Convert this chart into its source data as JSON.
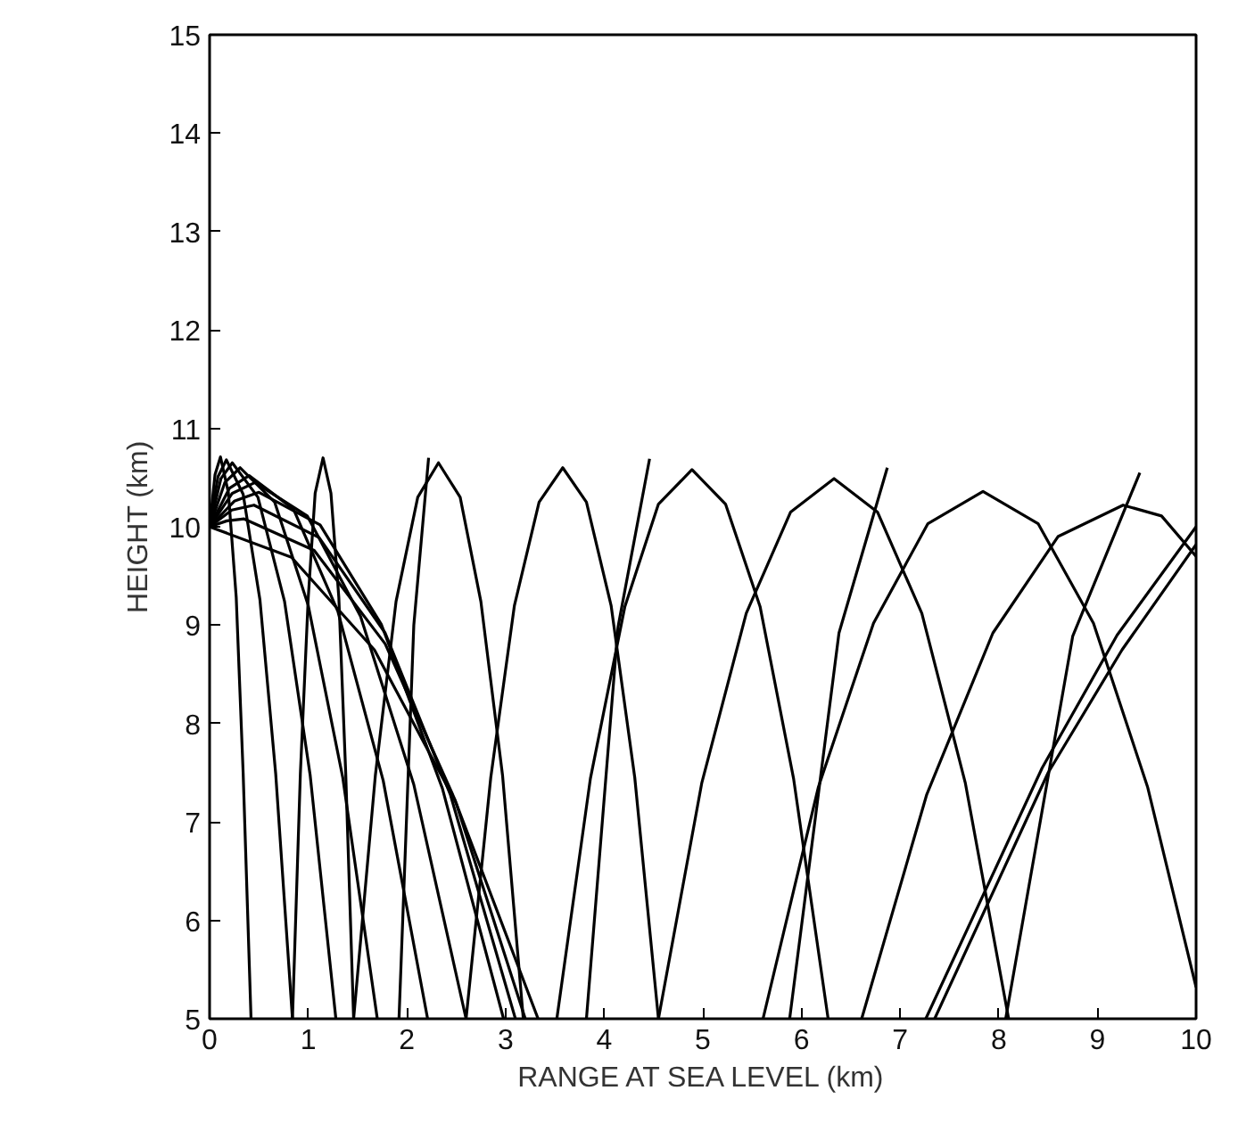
{
  "chart_data": {
    "type": "line",
    "xlabel": "RANGE AT SEA LEVEL (km)",
    "ylabel": "HEIGHT (km)",
    "xlim": [
      0,
      10
    ],
    "ylim": [
      5,
      15
    ],
    "xticks": [
      0,
      1,
      2,
      3,
      4,
      5,
      6,
      7,
      8,
      9,
      10
    ],
    "yticks": [
      5,
      6,
      7,
      8,
      9,
      10,
      11,
      12,
      13,
      14,
      15
    ],
    "series": [
      {
        "color": "#000000",
        "x": [
          0,
          0.055,
          0.11,
          0.19,
          0.27,
          0.34,
          0.42
        ],
        "values": [
          10,
          10.53,
          10.71,
          10.35,
          9.28,
          7.5,
          5
        ]
      },
      {
        "color": "#000000",
        "x": [
          0,
          0.085,
          0.17,
          0.34,
          0.51,
          0.67,
          0.84
        ],
        "values": [
          10,
          10.51,
          10.68,
          10.33,
          9.26,
          7.49,
          5
        ]
      },
      {
        "color": "#000000",
        "x": [
          0,
          0.115,
          0.23,
          0.49,
          0.76,
          1.02,
          1.28
        ],
        "values": [
          10,
          10.49,
          10.65,
          10.3,
          9.24,
          7.47,
          5
        ]
      },
      {
        "color": "#000000",
        "x": [
          0,
          0.155,
          0.31,
          0.66,
          1.0,
          1.35,
          1.7
        ],
        "values": [
          10,
          10.45,
          10.6,
          10.25,
          9.2,
          7.45,
          5
        ]
      },
      {
        "color": "#000000",
        "x": [
          0,
          0.2,
          0.4,
          0.85,
          1.3,
          1.76,
          2.21
        ],
        "values": [
          10,
          10.39,
          10.52,
          10.18,
          9.14,
          7.42,
          5
        ]
      },
      {
        "color": "#000000",
        "x": [
          0,
          0.23,
          0.46,
          0.99,
          1.53,
          2.07,
          2.6
        ],
        "values": [
          10,
          10.34,
          10.45,
          10.11,
          9.09,
          7.38,
          5
        ]
      },
      {
        "color": "#000000",
        "x": [
          0,
          0.25,
          0.5,
          1.12,
          1.74,
          2.36,
          2.98
        ],
        "values": [
          10,
          10.26,
          10.35,
          10.02,
          9.01,
          7.34,
          5
        ]
      },
      {
        "color": "#000000",
        "x": [
          0,
          0.225,
          0.45,
          1.11,
          1.78,
          2.44,
          3.1
        ],
        "values": [
          10,
          10.17,
          10.22,
          9.89,
          8.92,
          7.28,
          5
        ]
      },
      {
        "color": "#000000",
        "x": [
          0,
          0.175,
          0.35,
          1.06,
          1.78,
          2.49,
          3.2
        ],
        "values": [
          10,
          10.06,
          10.08,
          9.76,
          8.81,
          7.22,
          5
        ]
      },
      {
        "color": "#000000",
        "x": [
          0,
          0.83,
          1.67,
          2.5,
          3.33
        ],
        "values": [
          10,
          9.69,
          8.75,
          7.19,
          5
        ]
      },
      {
        "color": "#000000",
        "x": [
          0.84,
          0.92,
          1.0,
          1.07,
          1.15,
          1.23,
          1.31,
          1.38,
          1.46
        ],
        "values": [
          5,
          7.49,
          9.28,
          10.34,
          10.7,
          10.34,
          9.28,
          7.49,
          5
        ]
      },
      {
        "color": "#000000",
        "x": [
          1.46,
          1.68,
          1.89,
          2.11,
          2.32,
          2.54,
          2.75,
          2.97,
          3.18
        ],
        "values": [
          5,
          7.47,
          9.24,
          10.3,
          10.65,
          10.3,
          9.24,
          7.47,
          5
        ]
      },
      {
        "color": "#000000",
        "x": [
          2.6,
          2.85,
          3.09,
          3.34,
          3.58,
          3.82,
          4.07,
          4.31,
          4.55
        ],
        "values": [
          5,
          7.45,
          9.2,
          10.25,
          10.6,
          10.25,
          9.2,
          7.45,
          5
        ]
      },
      {
        "color": "#000000",
        "x": [
          3.52,
          3.86,
          4.21,
          4.55,
          4.89,
          5.23,
          5.58,
          5.92,
          6.27
        ],
        "values": [
          5,
          7.44,
          9.19,
          10.23,
          10.58,
          10.23,
          9.19,
          7.44,
          5
        ]
      },
      {
        "color": "#000000",
        "x": [
          4.55,
          4.99,
          5.44,
          5.89,
          6.33,
          6.77,
          7.22,
          7.66,
          8.1
        ],
        "values": [
          5,
          7.4,
          9.12,
          10.15,
          10.49,
          10.15,
          9.12,
          7.4,
          5
        ]
      },
      {
        "color": "#000000",
        "x": [
          5.61,
          6.17,
          6.73,
          7.28,
          7.84,
          8.4,
          8.96,
          9.51,
          10.0
        ],
        "values": [
          5,
          7.35,
          9.02,
          10.03,
          10.36,
          10.03,
          9.02,
          7.35,
          5.32
        ]
      },
      {
        "color": "#000000",
        "x": [
          6.61,
          7.27,
          7.94,
          8.6,
          9.26,
          9.65,
          10.0
        ],
        "values": [
          5,
          7.28,
          8.92,
          9.9,
          10.22,
          10.11,
          9.7
        ]
      },
      {
        "color": "#000000",
        "x": [
          1.92,
          2.07,
          2.22
        ],
        "values": [
          5,
          9.0,
          10.7
        ]
      },
      {
        "color": "#000000",
        "x": [
          3.82,
          4.14,
          4.46
        ],
        "values": [
          5,
          8.98,
          10.69
        ]
      },
      {
        "color": "#000000",
        "x": [
          5.88,
          6.38,
          6.87
        ],
        "values": [
          5,
          8.92,
          10.6
        ]
      },
      {
        "color": "#000000",
        "x": [
          8.07,
          8.75,
          9.43
        ],
        "values": [
          5,
          8.89,
          10.55
        ]
      },
      {
        "color": "#000000",
        "x": [
          7.26,
          8.44,
          9.2,
          10.0
        ],
        "values": [
          5,
          7.55,
          8.9,
          10.0
        ]
      },
      {
        "color": "#000000",
        "x": [
          7.35,
          8.5,
          9.25,
          10.0
        ],
        "values": [
          5,
          7.5,
          8.75,
          9.82
        ]
      }
    ]
  }
}
